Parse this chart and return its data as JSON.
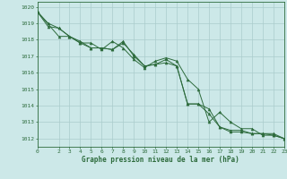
{
  "background_color": "#cce8e8",
  "grid_color": "#aacccc",
  "line_color": "#2d6b3c",
  "title": "Graphe pression niveau de la mer (hPa)",
  "xlim": [
    0,
    23
  ],
  "ylim": [
    1011.5,
    1020.3
  ],
  "yticks": [
    1012,
    1013,
    1014,
    1015,
    1016,
    1017,
    1018,
    1019,
    1020
  ],
  "xticks": [
    0,
    2,
    3,
    4,
    5,
    6,
    7,
    8,
    9,
    10,
    11,
    12,
    13,
    14,
    15,
    16,
    17,
    18,
    19,
    20,
    21,
    22,
    23
  ],
  "line1_x": [
    0,
    1,
    2,
    3,
    4,
    5,
    6,
    7,
    8,
    9,
    10,
    11,
    12,
    13,
    14,
    15,
    16,
    17,
    18,
    19,
    20,
    21,
    22,
    23
  ],
  "line1_y": [
    1019.7,
    1018.8,
    1018.7,
    1018.2,
    1017.8,
    1017.5,
    1017.5,
    1017.4,
    1017.9,
    1017.0,
    1016.4,
    1016.5,
    1016.8,
    1016.4,
    1014.1,
    1014.1,
    1013.8,
    1012.7,
    1012.5,
    1012.5,
    1012.3,
    1012.3,
    1012.3,
    1012.0
  ],
  "line2_x": [
    0,
    1,
    2,
    3,
    4,
    5,
    6,
    7,
    8,
    9,
    10,
    11,
    12,
    13,
    14,
    15,
    16,
    17,
    18,
    19,
    20,
    21,
    22,
    23
  ],
  "line2_y": [
    1019.7,
    1019.0,
    1018.7,
    1018.2,
    1017.8,
    1017.8,
    1017.4,
    1017.9,
    1017.5,
    1016.8,
    1016.3,
    1016.7,
    1016.9,
    1016.7,
    1015.6,
    1015.0,
    1013.0,
    1013.6,
    1013.0,
    1012.6,
    1012.6,
    1012.2,
    1012.2,
    1012.0
  ],
  "line3_x": [
    0,
    2,
    3,
    4,
    5,
    6,
    7,
    8,
    9,
    10,
    11,
    12,
    13,
    14,
    15,
    16,
    17,
    18,
    19,
    20,
    21,
    22,
    23
  ],
  "line3_y": [
    1019.7,
    1018.2,
    1018.2,
    1017.9,
    1017.5,
    1017.5,
    1017.4,
    1017.8,
    1017.1,
    1016.4,
    1016.5,
    1016.6,
    1016.4,
    1014.1,
    1014.1,
    1013.5,
    1012.7,
    1012.4,
    1012.4,
    1012.3,
    1012.3,
    1012.2,
    1012.0
  ]
}
